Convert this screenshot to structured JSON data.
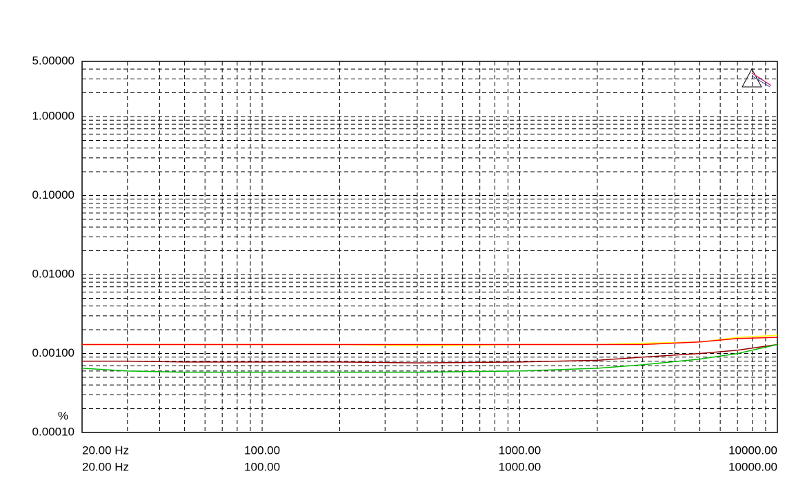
{
  "chart_data": {
    "type": "line",
    "y_label": "%",
    "x": [
      20,
      30,
      50,
      100,
      200,
      400,
      1000,
      2000,
      3000,
      5000,
      7000,
      10000
    ],
    "series": [
      {
        "color": "#ffff00",
        "values": [
          0.0013,
          0.0013,
          0.0013,
          0.0013,
          0.0013,
          0.00125,
          0.0013,
          0.0013,
          0.00135,
          0.0014,
          0.0016,
          0.0017
        ]
      },
      {
        "color": "#ff0000",
        "values": [
          0.0013,
          0.0013,
          0.0013,
          0.0013,
          0.0013,
          0.0013,
          0.0013,
          0.0013,
          0.0013,
          0.0014,
          0.00155,
          0.0016
        ]
      },
      {
        "color": "#990000",
        "values": [
          0.0008,
          0.0008,
          0.00078,
          0.00078,
          0.00078,
          0.00076,
          0.00078,
          0.00082,
          0.0009,
          0.001,
          0.0011,
          0.0013
        ]
      },
      {
        "color": "#00bb00",
        "values": [
          0.00065,
          0.0006,
          0.00058,
          0.00058,
          0.00058,
          0.00058,
          0.0006,
          0.00065,
          0.00072,
          0.00085,
          0.001,
          0.0013
        ]
      }
    ],
    "xscale": "log",
    "yscale": "log",
    "xlim": [
      20,
      10000
    ],
    "ylim": [
      0.0001,
      5
    ],
    "xticks": [
      {
        "value": 20,
        "label": "20.00 Hz"
      },
      {
        "value": 100,
        "label": "100.00"
      },
      {
        "value": 1000,
        "label": "1000.00"
      },
      {
        "value": 10000,
        "label": "10000.00"
      }
    ],
    "x2ticks": [
      {
        "value": 20,
        "label": "20.00 Hz"
      },
      {
        "value": 100,
        "label": "100.00"
      },
      {
        "value": 1000,
        "label": "1000.00"
      },
      {
        "value": 10000,
        "label": "10000.00"
      }
    ],
    "yticks": [
      {
        "value": 5,
        "label": "5.00000"
      },
      {
        "value": 1,
        "label": "1.00000"
      },
      {
        "value": 0.1,
        "label": "0.10000"
      },
      {
        "value": 0.01,
        "label": "0.01000"
      },
      {
        "value": 0.001,
        "label": "0.00100"
      },
      {
        "value": 0.0001,
        "label": "0.00010"
      }
    ],
    "x_grid": [
      30,
      40,
      50,
      60,
      70,
      80,
      90,
      200,
      300,
      400,
      500,
      600,
      700,
      800,
      900,
      2000,
      3000,
      4000,
      5000,
      6000,
      7000,
      8000,
      9000
    ],
    "y_grid": [
      0.0002,
      0.0003,
      0.0004,
      0.0005,
      0.0006,
      0.0007,
      0.0008,
      0.0009,
      0.002,
      0.003,
      0.004,
      0.005,
      0.006,
      0.007,
      0.008,
      0.009,
      0.02,
      0.03,
      0.04,
      0.05,
      0.06,
      0.07,
      0.08,
      0.09,
      0.2,
      0.3,
      0.4,
      0.5,
      0.6,
      0.7,
      0.8,
      0.9,
      2,
      3,
      4
    ],
    "grid": true
  }
}
